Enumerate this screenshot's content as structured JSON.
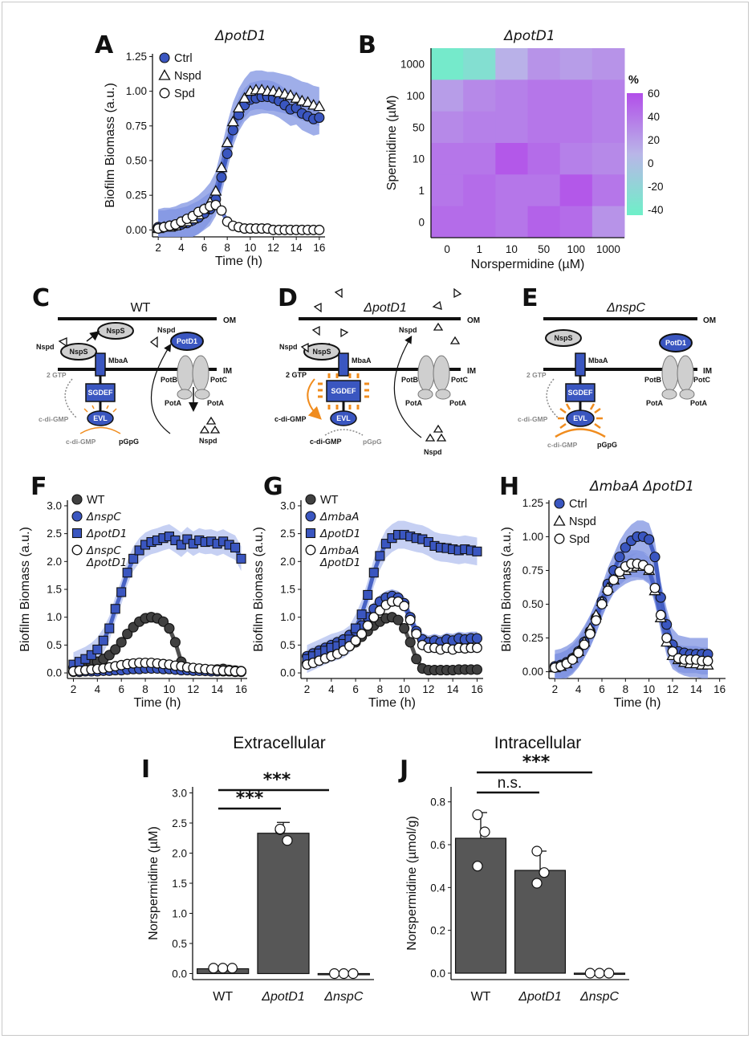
{
  "figure": {
    "colors": {
      "blue": "#3a56c0",
      "blue_band": "#7f93e2",
      "blue_band_light": "#b3c0ef",
      "gray_dark": "#404040",
      "gray_band": "#b9b9b9",
      "bar": "#575757",
      "orange": "#f08c1e",
      "heat_low": "#6ef0c8",
      "heat_mid": "#b9b6e8",
      "heat_high": "#b24ee9"
    },
    "panels": {
      "A": {
        "letter": "A",
        "title": "ΔpotD1"
      },
      "B": {
        "letter": "B",
        "title": "ΔpotD1"
      },
      "C": {
        "letter": "C",
        "title": "WT"
      },
      "D": {
        "letter": "D",
        "title": "ΔpotD1"
      },
      "E": {
        "letter": "E",
        "title": "ΔnspC"
      },
      "F": {
        "letter": "F"
      },
      "G": {
        "letter": "G"
      },
      "H": {
        "letter": "H",
        "title": "ΔmbaA ΔpotD1"
      },
      "I": {
        "letter": "I",
        "title": "Extracellular"
      },
      "J": {
        "letter": "J",
        "title": "Intracellular"
      }
    },
    "diagram": {
      "om": "OM",
      "im": "IM",
      "nsps": "NspS",
      "mbaa": "MbaA",
      "nspd": "Nspd",
      "potd1": "PotD1",
      "potb": "PotB",
      "potc": "PotC",
      "pota": "PotA",
      "gtp": "2 GTP",
      "sgdef": "SGDEF",
      "evl": "EVL",
      "cdigmp": "c-di-GMP",
      "pgpg": "pGpG"
    },
    "significance": {
      "I": [
        "***",
        "***"
      ],
      "J": [
        "n.s.",
        "***"
      ]
    },
    "icons": {
      "legend_markers": [
        "circle-icon",
        "triangle-icon",
        "square-icon"
      ]
    }
  },
  "chart_data": [
    {
      "id": "A",
      "type": "line",
      "xlabel": "Time (h)",
      "ylabel": "Biofilm Biomass (a.u.)",
      "xlim": [
        1.5,
        16.5
      ],
      "ylim": [
        -0.05,
        1.27
      ],
      "xticks": [
        2,
        4,
        6,
        8,
        10,
        12,
        14,
        16
      ],
      "yticks": [
        0,
        0.25,
        0.5,
        0.75,
        1.0,
        1.25
      ],
      "ytick_labels": [
        "0.00",
        "0.25",
        "0.50",
        "0.75",
        "1.00",
        "1.25"
      ],
      "x": [
        2,
        2.5,
        3,
        3.5,
        4,
        4.5,
        5,
        5.5,
        6,
        6.5,
        7,
        7.5,
        8,
        8.5,
        9,
        9.5,
        10,
        10.5,
        11,
        11.5,
        12,
        12.5,
        13,
        13.5,
        14,
        14.5,
        15,
        15.5,
        16
      ],
      "series": [
        {
          "name": "Ctrl",
          "marker": "circle",
          "color": "#3a56c0",
          "band": 0.12,
          "values": [
            0.02,
            0.02,
            0.03,
            0.03,
            0.04,
            0.05,
            0.07,
            0.09,
            0.12,
            0.15,
            0.22,
            0.38,
            0.55,
            0.72,
            0.83,
            0.9,
            0.94,
            0.95,
            0.96,
            0.96,
            0.95,
            0.93,
            0.9,
            0.87,
            0.88,
            0.84,
            0.82,
            0.8,
            0.81
          ]
        },
        {
          "name": "Nspd",
          "marker": "triangle",
          "color": "#ffffff",
          "band": 0.14,
          "values": [
            0.01,
            0.02,
            0.02,
            0.03,
            0.05,
            0.06,
            0.08,
            0.11,
            0.15,
            0.2,
            0.28,
            0.45,
            0.63,
            0.78,
            0.88,
            0.95,
            1.0,
            1.01,
            1.01,
            1.0,
            1.0,
            0.99,
            0.98,
            0.97,
            0.95,
            0.93,
            0.92,
            0.9,
            0.89
          ]
        },
        {
          "name": "Spd",
          "marker": "circle-open",
          "color": "#ffffff",
          "band": 0.03,
          "values": [
            0.01,
            0.02,
            0.03,
            0.04,
            0.06,
            0.08,
            0.1,
            0.13,
            0.15,
            0.17,
            0.18,
            0.14,
            0.06,
            0.03,
            0.02,
            0.01,
            0.01,
            0.01,
            0.01,
            0.01,
            0.0,
            0.0,
            0.0,
            0.0,
            0.0,
            0.0,
            0.0,
            0.0,
            0.0
          ]
        }
      ]
    },
    {
      "id": "B",
      "type": "heatmap",
      "xlabel": "Norspermidine (µM)",
      "ylabel": "Spermidine (µM)",
      "x_categories": [
        "0",
        "1",
        "10",
        "50",
        "100",
        "1000"
      ],
      "y_categories": [
        "1000",
        "100",
        "50",
        "10",
        "1",
        "0"
      ],
      "colorbar": {
        "label": "%",
        "ticks": [
          60,
          40,
          20,
          0,
          -20,
          -40
        ],
        "range": [
          -45,
          60
        ]
      },
      "values": [
        [
          -40,
          -30,
          10,
          25,
          20,
          25
        ],
        [
          20,
          30,
          35,
          40,
          40,
          35
        ],
        [
          30,
          35,
          35,
          40,
          40,
          35
        ],
        [
          40,
          40,
          55,
          45,
          35,
          30
        ],
        [
          40,
          45,
          40,
          40,
          55,
          40
        ],
        [
          45,
          45,
          40,
          50,
          45,
          25
        ]
      ]
    },
    {
      "id": "F",
      "type": "line",
      "xlabel": "Time (h)",
      "ylabel": "Biofilm Biomass (a.u.)",
      "xlim": [
        1.5,
        16.5
      ],
      "ylim": [
        -0.1,
        3.1
      ],
      "xticks": [
        2,
        4,
        6,
        8,
        10,
        12,
        14,
        16
      ],
      "yticks": [
        0,
        0.5,
        1,
        1.5,
        2,
        2.5,
        3
      ],
      "ytick_labels": [
        "0.0",
        "0.5",
        "1.0",
        "1.5",
        "2.0",
        "2.5",
        "3.0"
      ],
      "x": [
        2,
        2.5,
        3,
        3.5,
        4,
        4.5,
        5,
        5.5,
        6,
        6.5,
        7,
        7.5,
        8,
        8.5,
        9,
        9.5,
        10,
        10.5,
        11,
        11.5,
        12,
        12.5,
        13,
        13.5,
        14,
        14.5,
        15,
        15.5,
        16
      ],
      "series": [
        {
          "name": "WT",
          "marker": "circle",
          "color": "#404040",
          "band": 0.1,
          "values": [
            0.1,
            0.12,
            0.14,
            0.17,
            0.2,
            0.25,
            0.32,
            0.42,
            0.55,
            0.7,
            0.82,
            0.92,
            0.98,
            1.0,
            0.98,
            0.92,
            0.8,
            0.55,
            0.2,
            0.08,
            0.05,
            0.05,
            0.04,
            0.05,
            0.06,
            0.07,
            0.05,
            0.04,
            0.03
          ]
        },
        {
          "name": "ΔnspC",
          "marker": "circle",
          "color": "#3a56c0",
          "band": 0.03,
          "values": [
            0.02,
            0.02,
            0.03,
            0.03,
            0.03,
            0.04,
            0.04,
            0.05,
            0.05,
            0.06,
            0.07,
            0.07,
            0.08,
            0.08,
            0.08,
            0.07,
            0.07,
            0.06,
            0.05,
            0.05,
            0.04,
            0.04,
            0.04,
            0.03,
            0.03,
            0.03,
            0.03,
            0.02,
            0.02
          ]
        },
        {
          "name": "ΔpotD1",
          "marker": "square",
          "color": "#3a56c0",
          "band": 0.22,
          "values": [
            0.15,
            0.2,
            0.25,
            0.32,
            0.42,
            0.58,
            0.8,
            1.15,
            1.45,
            1.8,
            2.05,
            2.2,
            2.3,
            2.35,
            2.38,
            2.42,
            2.45,
            2.38,
            2.3,
            2.4,
            2.32,
            2.38,
            2.35,
            2.36,
            2.32,
            2.36,
            2.3,
            2.25,
            2.05
          ]
        },
        {
          "name": "ΔnspC ΔpotD1",
          "marker": "circle-open",
          "color": "#ffffff",
          "band": 0.04,
          "values": [
            0.03,
            0.04,
            0.05,
            0.06,
            0.07,
            0.08,
            0.1,
            0.12,
            0.14,
            0.16,
            0.17,
            0.18,
            0.18,
            0.18,
            0.17,
            0.16,
            0.15,
            0.13,
            0.12,
            0.1,
            0.09,
            0.08,
            0.07,
            0.06,
            0.05,
            0.04,
            0.04,
            0.03,
            0.03
          ]
        }
      ]
    },
    {
      "id": "G",
      "type": "line",
      "xlabel": "Time (h)",
      "ylabel": "Biofilm Biomass (a.u.)",
      "xlim": [
        1.5,
        16.5
      ],
      "ylim": [
        -0.1,
        3.1
      ],
      "xticks": [
        2,
        4,
        6,
        8,
        10,
        12,
        14,
        16
      ],
      "yticks": [
        0,
        0.5,
        1,
        1.5,
        2,
        2.5,
        3
      ],
      "ytick_labels": [
        "0.0",
        "0.5",
        "1.0",
        "1.5",
        "2.0",
        "2.5",
        "3.0"
      ],
      "x": [
        2,
        2.5,
        3,
        3.5,
        4,
        4.5,
        5,
        5.5,
        6,
        6.5,
        7,
        7.5,
        8,
        8.5,
        9,
        9.5,
        10,
        10.5,
        11,
        11.5,
        12,
        12.5,
        13,
        13.5,
        14,
        14.5,
        15,
        15.5,
        16
      ],
      "series": [
        {
          "name": "WT",
          "marker": "circle",
          "color": "#404040",
          "band": 0.06,
          "values": [
            0.18,
            0.22,
            0.26,
            0.3,
            0.34,
            0.38,
            0.42,
            0.48,
            0.55,
            0.65,
            0.75,
            0.85,
            0.92,
            0.98,
            1.0,
            0.95,
            0.8,
            0.55,
            0.25,
            0.08,
            0.05,
            0.05,
            0.05,
            0.05,
            0.05,
            0.06,
            0.06,
            0.06,
            0.06
          ]
        },
        {
          "name": "ΔmbaA",
          "marker": "circle",
          "color": "#3a56c0",
          "band": 0.12,
          "values": [
            0.3,
            0.35,
            0.4,
            0.45,
            0.5,
            0.55,
            0.6,
            0.68,
            0.75,
            0.85,
            1.0,
            1.15,
            1.28,
            1.35,
            1.38,
            1.35,
            1.25,
            1.0,
            0.75,
            0.6,
            0.55,
            0.58,
            0.55,
            0.6,
            0.58,
            0.62,
            0.6,
            0.62,
            0.62
          ]
        },
        {
          "name": "ΔpotD1",
          "marker": "square",
          "color": "#3a56c0",
          "band": 0.25,
          "values": [
            0.25,
            0.3,
            0.35,
            0.4,
            0.45,
            0.48,
            0.52,
            0.6,
            0.8,
            1.05,
            1.4,
            1.8,
            2.1,
            2.32,
            2.42,
            2.48,
            2.48,
            2.45,
            2.42,
            2.4,
            2.35,
            2.28,
            2.25,
            2.24,
            2.22,
            2.2,
            2.22,
            2.2,
            2.18
          ]
        },
        {
          "name": "ΔmbaA ΔpotD1",
          "marker": "circle-open",
          "color": "#ffffff",
          "band": 0.08,
          "values": [
            0.15,
            0.18,
            0.22,
            0.26,
            0.3,
            0.34,
            0.4,
            0.48,
            0.58,
            0.7,
            0.85,
            1.0,
            1.12,
            1.22,
            1.28,
            1.28,
            1.2,
            0.95,
            0.7,
            0.5,
            0.45,
            0.45,
            0.42,
            0.45,
            0.42,
            0.45,
            0.44,
            0.45,
            0.45
          ]
        }
      ]
    },
    {
      "id": "H",
      "type": "line",
      "xlabel": "Time (h)",
      "ylabel": "Biofilm Biomass (a.u.)",
      "xlim": [
        1.5,
        16.5
      ],
      "ylim": [
        -0.05,
        1.27
      ],
      "xticks": [
        2,
        4,
        6,
        8,
        10,
        12,
        14,
        16
      ],
      "yticks": [
        0,
        0.25,
        0.5,
        0.75,
        1.0,
        1.25
      ],
      "ytick_labels": [
        "0.00",
        "0.25",
        "0.50",
        "0.75",
        "1.00",
        "1.25"
      ],
      "x": [
        2,
        2.5,
        3,
        3.5,
        4,
        4.5,
        5,
        5.5,
        6,
        6.5,
        7,
        7.5,
        8,
        8.5,
        9,
        9.5,
        10,
        10.5,
        11,
        11.5,
        12,
        12.5,
        13,
        13.5,
        14,
        14.5,
        15
      ],
      "series": [
        {
          "name": "Ctrl",
          "marker": "circle",
          "color": "#3a56c0",
          "band": 0.12,
          "values": [
            0.04,
            0.05,
            0.07,
            0.1,
            0.15,
            0.22,
            0.3,
            0.4,
            0.52,
            0.65,
            0.75,
            0.85,
            0.92,
            0.97,
            1.0,
            1.0,
            0.98,
            0.85,
            0.55,
            0.35,
            0.2,
            0.15,
            0.14,
            0.13,
            0.13,
            0.13,
            0.13
          ]
        },
        {
          "name": "Nspd",
          "marker": "triangle",
          "color": "#ffffff",
          "band": 0.1,
          "values": [
            0.03,
            0.04,
            0.06,
            0.1,
            0.15,
            0.22,
            0.32,
            0.42,
            0.52,
            0.62,
            0.68,
            0.72,
            0.75,
            0.77,
            0.78,
            0.78,
            0.75,
            0.6,
            0.4,
            0.22,
            0.12,
            0.09,
            0.07,
            0.06,
            0.06,
            0.05,
            0.05
          ]
        },
        {
          "name": "Spd",
          "marker": "circle-open",
          "color": "#ffffff",
          "band": 0.1,
          "values": [
            0.03,
            0.04,
            0.06,
            0.09,
            0.14,
            0.2,
            0.28,
            0.38,
            0.5,
            0.6,
            0.68,
            0.74,
            0.78,
            0.8,
            0.8,
            0.79,
            0.76,
            0.62,
            0.42,
            0.25,
            0.15,
            0.1,
            0.09,
            0.09,
            0.09,
            0.08,
            0.08
          ]
        }
      ]
    },
    {
      "id": "I",
      "type": "bar",
      "ylabel": "Norspermidine (µM)",
      "ylim": [
        -0.1,
        3.1
      ],
      "yticks": [
        0,
        0.5,
        1,
        1.5,
        2,
        2.5,
        3
      ],
      "ytick_labels": [
        "0.0",
        "0.5",
        "1.0",
        "1.5",
        "2.0",
        "2.5",
        "3.0"
      ],
      "categories": [
        "WT",
        "ΔpotD1",
        "ΔnspC"
      ],
      "values": [
        0.08,
        2.33,
        0.0
      ],
      "errors": [
        0.0,
        0.18,
        0.0
      ],
      "points": [
        [
          0.09,
          0.09,
          0.09
        ],
        [
          2.39,
          2.21,
          2.4
        ],
        [
          0.0,
          0.0,
          0.0
        ]
      ]
    },
    {
      "id": "J",
      "type": "bar",
      "ylabel": "Norspermidine (µmol/g)",
      "ylim": [
        -0.03,
        0.87
      ],
      "yticks": [
        0,
        0.2,
        0.4,
        0.6,
        0.8
      ],
      "ytick_labels": [
        "0.0",
        "0.2",
        "0.4",
        "0.6",
        "0.8"
      ],
      "categories": [
        "WT",
        "ΔpotD1",
        "ΔnspC"
      ],
      "values": [
        0.63,
        0.48,
        0.0
      ],
      "errors": [
        0.12,
        0.09,
        0.0
      ],
      "points": [
        [
          0.74,
          0.66,
          0.5
        ],
        [
          0.57,
          0.47,
          0.42
        ],
        [
          0.0,
          0.0,
          0.0
        ]
      ]
    }
  ]
}
